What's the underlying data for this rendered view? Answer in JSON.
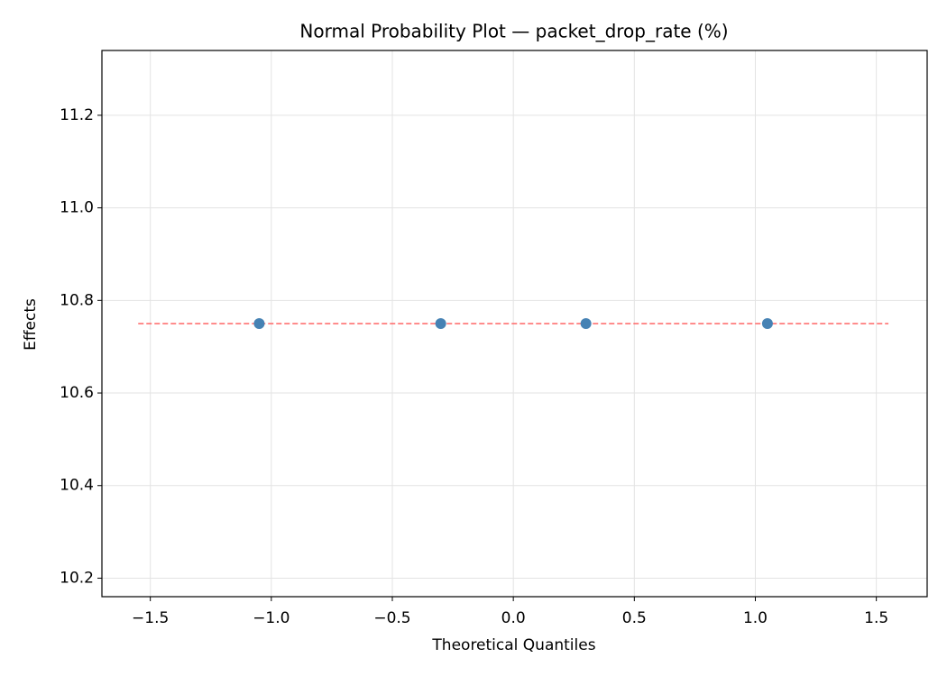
{
  "chart_data": {
    "type": "scatter",
    "title": "Normal Probability Plot — packet_drop_rate (%)",
    "xlabel": "Theoretical Quantiles",
    "ylabel": "Effects",
    "xlim": [
      -1.7,
      1.71
    ],
    "ylim": [
      10.16,
      11.34
    ],
    "xticks": [
      {
        "value": -1.5,
        "label": "−1.5"
      },
      {
        "value": -1.0,
        "label": "−1.0"
      },
      {
        "value": -0.5,
        "label": "−0.5"
      },
      {
        "value": 0,
        "label": "0.0"
      },
      0.5,
      {
        "value": 1,
        "label": "1.0"
      },
      1.5
    ],
    "yticks": [
      10.2,
      10.4,
      10.6,
      10.8,
      {
        "value": 11,
        "label": "11.0"
      },
      11.2
    ],
    "grid": true,
    "series": [
      {
        "kind": "scatter",
        "color": "#4682b4",
        "x": [
          -1.05,
          -0.3,
          0.3,
          1.05
        ],
        "values": [
          10.75,
          10.75,
          10.75,
          10.75
        ]
      },
      {
        "kind": "line",
        "color": "#ff6666",
        "dash": true,
        "x": [
          -1.55,
          1.55
        ],
        "values": [
          10.75,
          10.75
        ]
      }
    ]
  }
}
